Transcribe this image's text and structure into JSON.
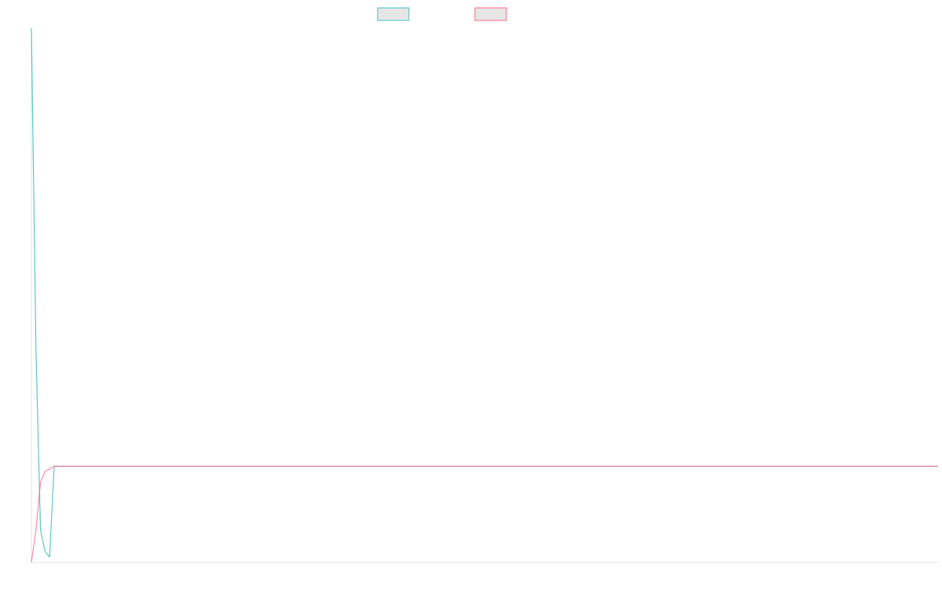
{
  "chart_data": {
    "type": "line",
    "title": "",
    "xlabel": "",
    "ylabel": "",
    "legend_position": "top-center",
    "grid": false,
    "x_count": 200,
    "ylim": [
      0,
      1
    ],
    "series": [
      {
        "name": "",
        "color": "#4bc0c0",
        "fill": "#e6e6e6",
        "values_head": [
          1.0,
          0.4,
          0.06,
          0.02,
          0.01
        ],
        "steady_value": 0.18
      },
      {
        "name": "",
        "color": "#ff6384",
        "fill": "#e6e6e6",
        "values_head": [
          0.0,
          0.06,
          0.15,
          0.17,
          0.175
        ],
        "steady_value": 0.18
      }
    ]
  }
}
